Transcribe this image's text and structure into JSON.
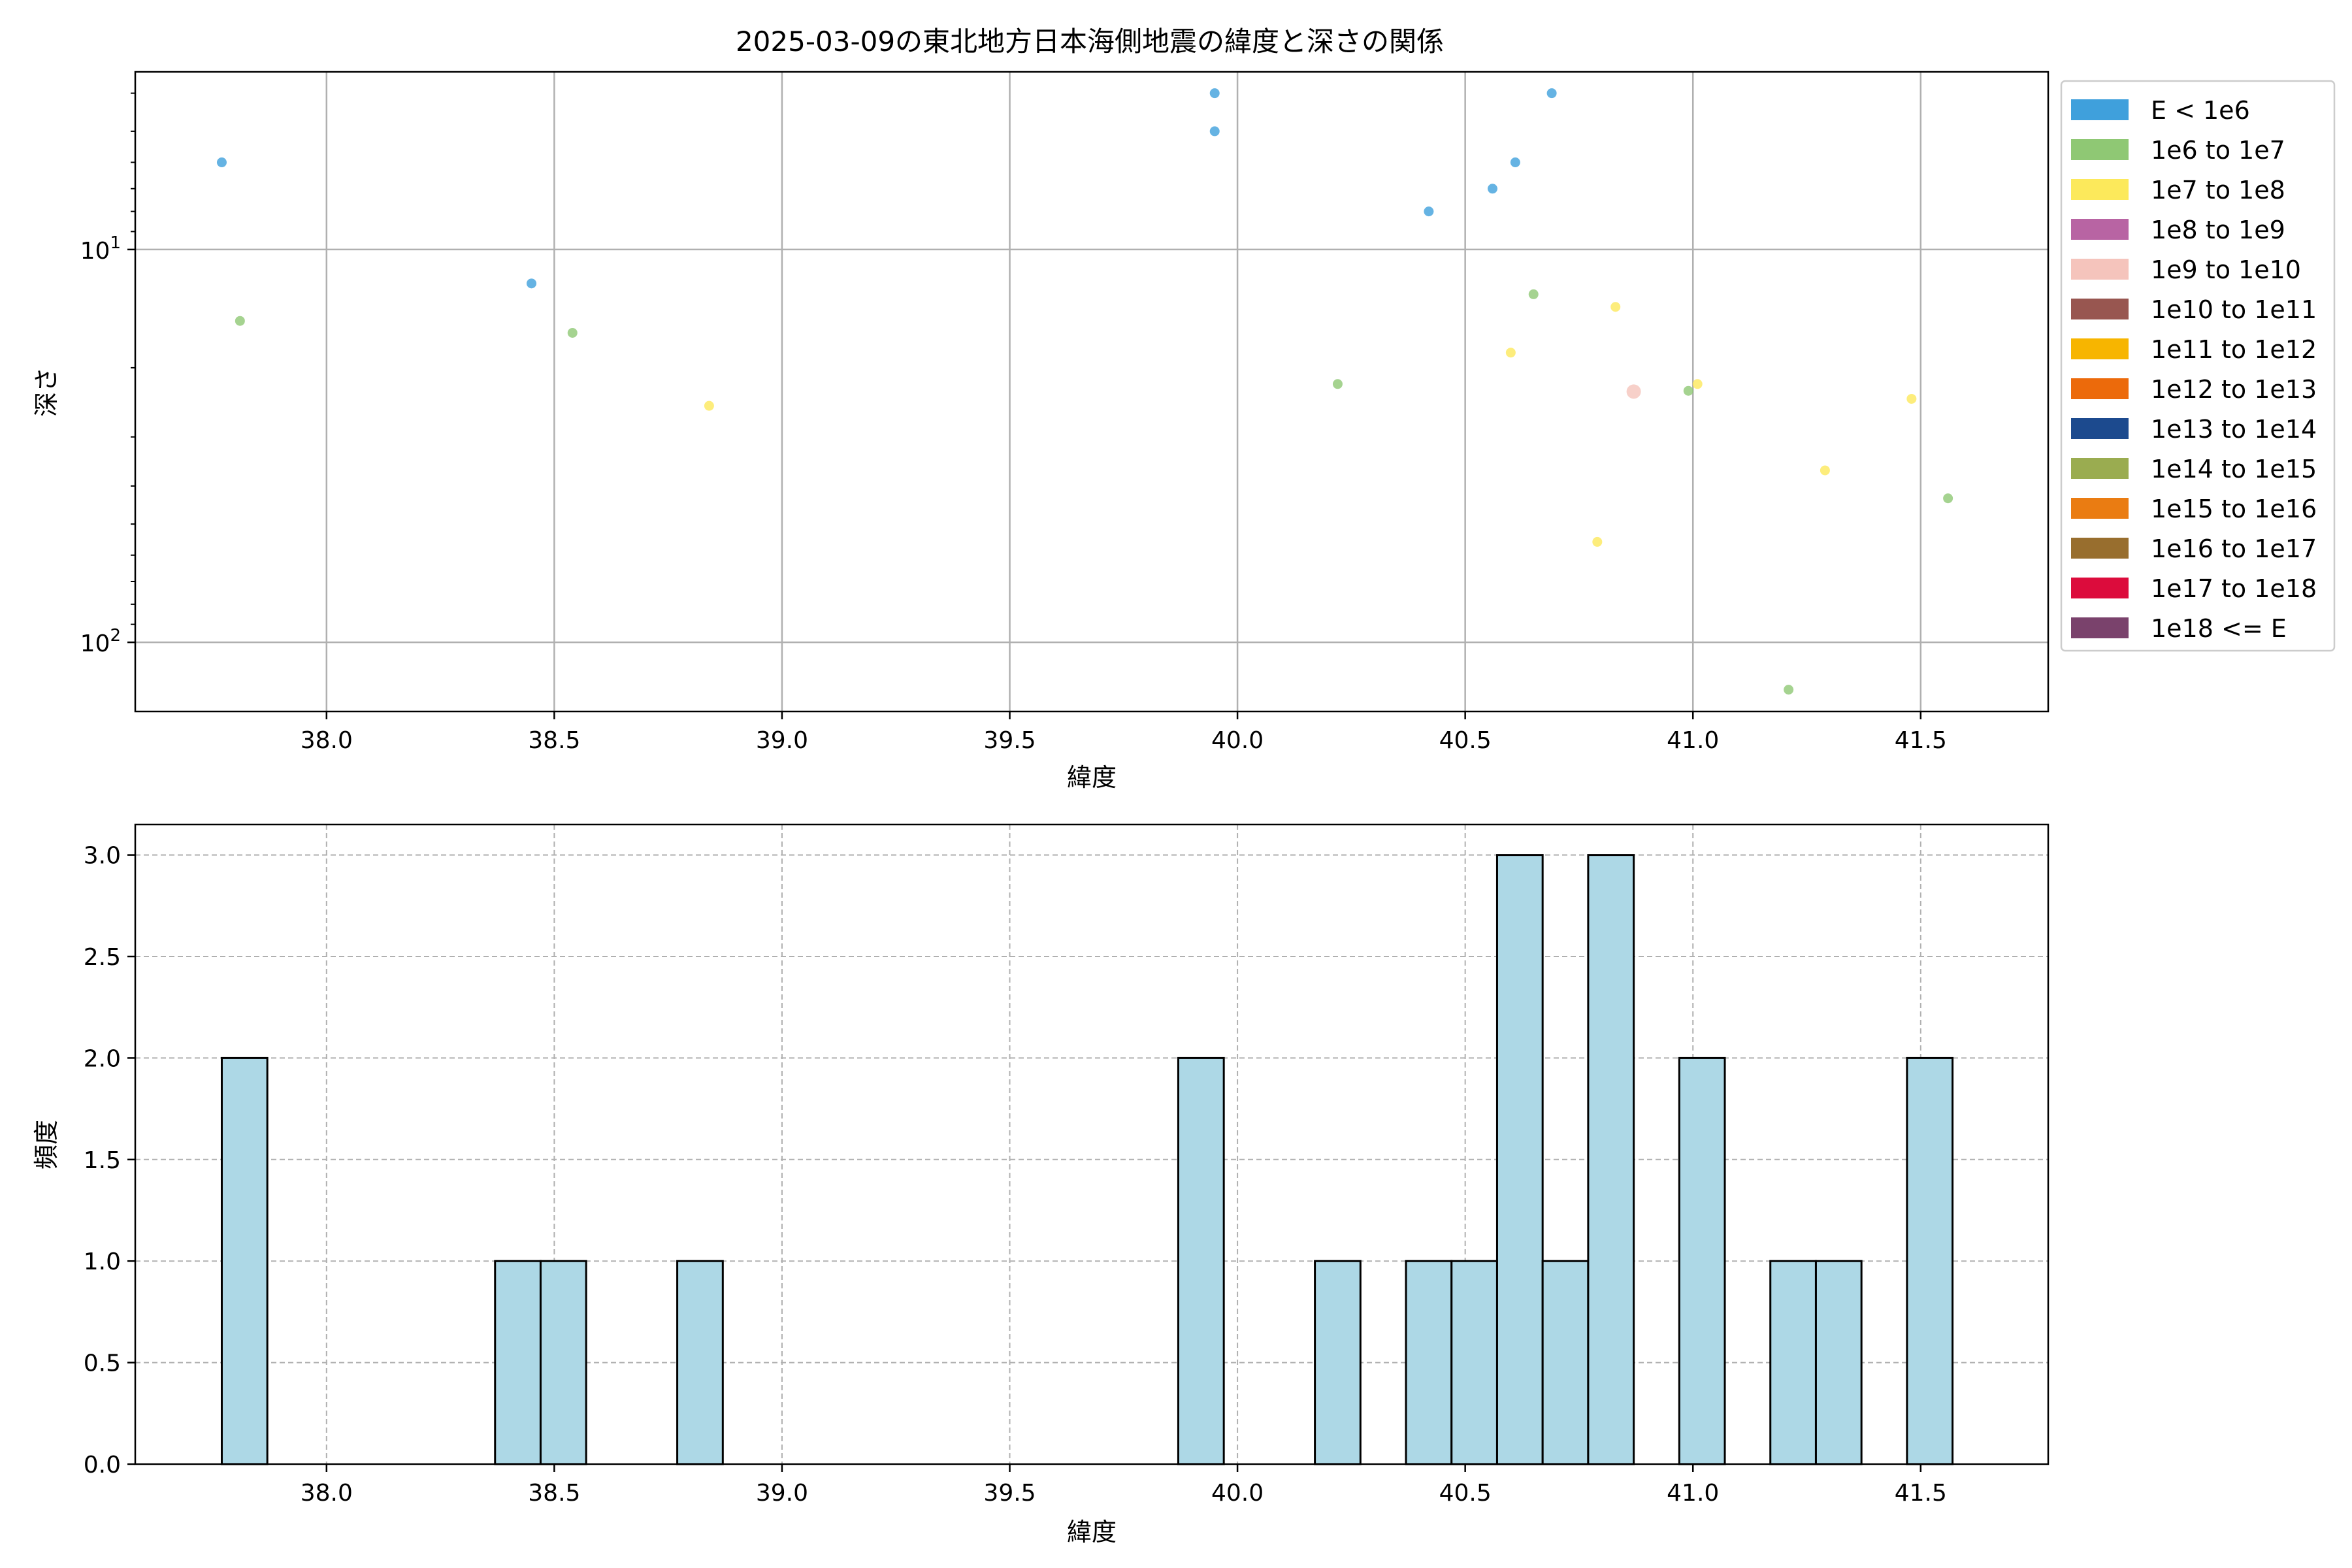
{
  "title": "2025-03-09の東北地方日本海側地震の緯度と深さの関係",
  "colors": {
    "hist_fill": "#add8e6",
    "hist_edge": "#000000",
    "grid": "#b0b0b0"
  },
  "legend": {
    "placement": "outside right, top",
    "entries": [
      {
        "label": "E < 1e6",
        "color": "#3fa0dc"
      },
      {
        "label": "1e6 to 1e7",
        "color": "#8fc874"
      },
      {
        "label": "1e7 to 1e8",
        "color": "#fce95b"
      },
      {
        "label": "1e8 to 1e9",
        "color": "#b864a3"
      },
      {
        "label": "1e9 to 1e10",
        "color": "#f5c4bc"
      },
      {
        "label": "1e10 to 1e11",
        "color": "#985650"
      },
      {
        "label": "1e11 to 1e12",
        "color": "#f7b500"
      },
      {
        "label": "1e12 to 1e13",
        "color": "#ec6a0b"
      },
      {
        "label": "1e13 to 1e14",
        "color": "#1c4a8e"
      },
      {
        "label": "1e14 to 1e15",
        "color": "#9aac50"
      },
      {
        "label": "1e15 to 1e16",
        "color": "#ea7c12"
      },
      {
        "label": "1e16 to 1e17",
        "color": "#986e2e"
      },
      {
        "label": "1e17 to 1e18",
        "color": "#dc0c3c"
      },
      {
        "label": "1e18 <= E",
        "color": "#7a426c"
      }
    ]
  },
  "chart_data": [
    {
      "type": "scatter",
      "xlabel": "緯度",
      "ylabel": "深さ",
      "xlim": [
        37.58,
        41.78
      ],
      "ylim": [
        3.53,
        150
      ],
      "yscale": "log",
      "yaxis_inverted": true,
      "xticks": [
        38.0,
        38.5,
        39.0,
        39.5,
        40.0,
        40.5,
        41.0,
        41.5
      ],
      "xtick_labels": [
        "38.0",
        "38.5",
        "39.0",
        "39.5",
        "40.0",
        "40.5",
        "41.0",
        "41.5"
      ],
      "yticks": [
        10,
        100
      ],
      "ytick_labels": [
        "10^1",
        "10^2"
      ],
      "grid": true,
      "points": [
        {
          "x": 37.77,
          "y": 6.0,
          "bin": 0
        },
        {
          "x": 38.45,
          "y": 12.2,
          "bin": 0
        },
        {
          "x": 39.95,
          "y": 4.0,
          "bin": 0
        },
        {
          "x": 39.95,
          "y": 5.0,
          "bin": 0
        },
        {
          "x": 40.42,
          "y": 8.0,
          "bin": 0
        },
        {
          "x": 40.56,
          "y": 7.0,
          "bin": 0
        },
        {
          "x": 40.61,
          "y": 6.0,
          "bin": 0
        },
        {
          "x": 40.69,
          "y": 4.0,
          "bin": 0
        },
        {
          "x": 37.81,
          "y": 15.2,
          "bin": 1
        },
        {
          "x": 38.54,
          "y": 16.3,
          "bin": 1
        },
        {
          "x": 40.22,
          "y": 22.0,
          "bin": 1
        },
        {
          "x": 40.65,
          "y": 13.0,
          "bin": 1
        },
        {
          "x": 40.99,
          "y": 22.9,
          "bin": 1
        },
        {
          "x": 41.21,
          "y": 132.0,
          "bin": 1
        },
        {
          "x": 41.56,
          "y": 43.0,
          "bin": 1
        },
        {
          "x": 38.84,
          "y": 25.0,
          "bin": 2
        },
        {
          "x": 40.6,
          "y": 18.3,
          "bin": 2
        },
        {
          "x": 40.79,
          "y": 55.5,
          "bin": 2
        },
        {
          "x": 40.83,
          "y": 14.0,
          "bin": 2
        },
        {
          "x": 41.01,
          "y": 22.0,
          "bin": 2
        },
        {
          "x": 41.29,
          "y": 36.5,
          "bin": 2
        },
        {
          "x": 41.48,
          "y": 24.0,
          "bin": 2
        },
        {
          "x": 40.87,
          "y": 23.0,
          "bin": 4
        }
      ]
    },
    {
      "type": "bar",
      "subtype": "histogram",
      "xlabel": "緯度",
      "ylabel": "頻度",
      "xlim": [
        37.58,
        41.78
      ],
      "ylim": [
        0,
        3.15
      ],
      "xticks": [
        38.0,
        38.5,
        39.0,
        39.5,
        40.0,
        40.5,
        41.0,
        41.5
      ],
      "xtick_labels": [
        "38.0",
        "38.5",
        "39.0",
        "39.5",
        "40.0",
        "40.5",
        "41.0",
        "41.5"
      ],
      "yticks": [
        0.0,
        0.5,
        1.0,
        1.5,
        2.0,
        2.5,
        3.0
      ],
      "ytick_labels": [
        "0.0",
        "0.5",
        "1.0",
        "1.5",
        "2.0",
        "2.5",
        "3.0"
      ],
      "grid": true,
      "bin_start": 37.77,
      "bin_width": 0.1,
      "values": [
        2,
        0,
        0,
        0,
        0,
        0,
        1,
        1,
        0,
        0,
        1,
        0,
        0,
        0,
        0,
        0,
        0,
        0,
        0,
        0,
        0,
        2,
        0,
        0,
        1,
        0,
        1,
        1,
        3,
        1,
        3,
        0,
        2,
        0,
        1,
        1,
        0,
        2
      ]
    }
  ]
}
